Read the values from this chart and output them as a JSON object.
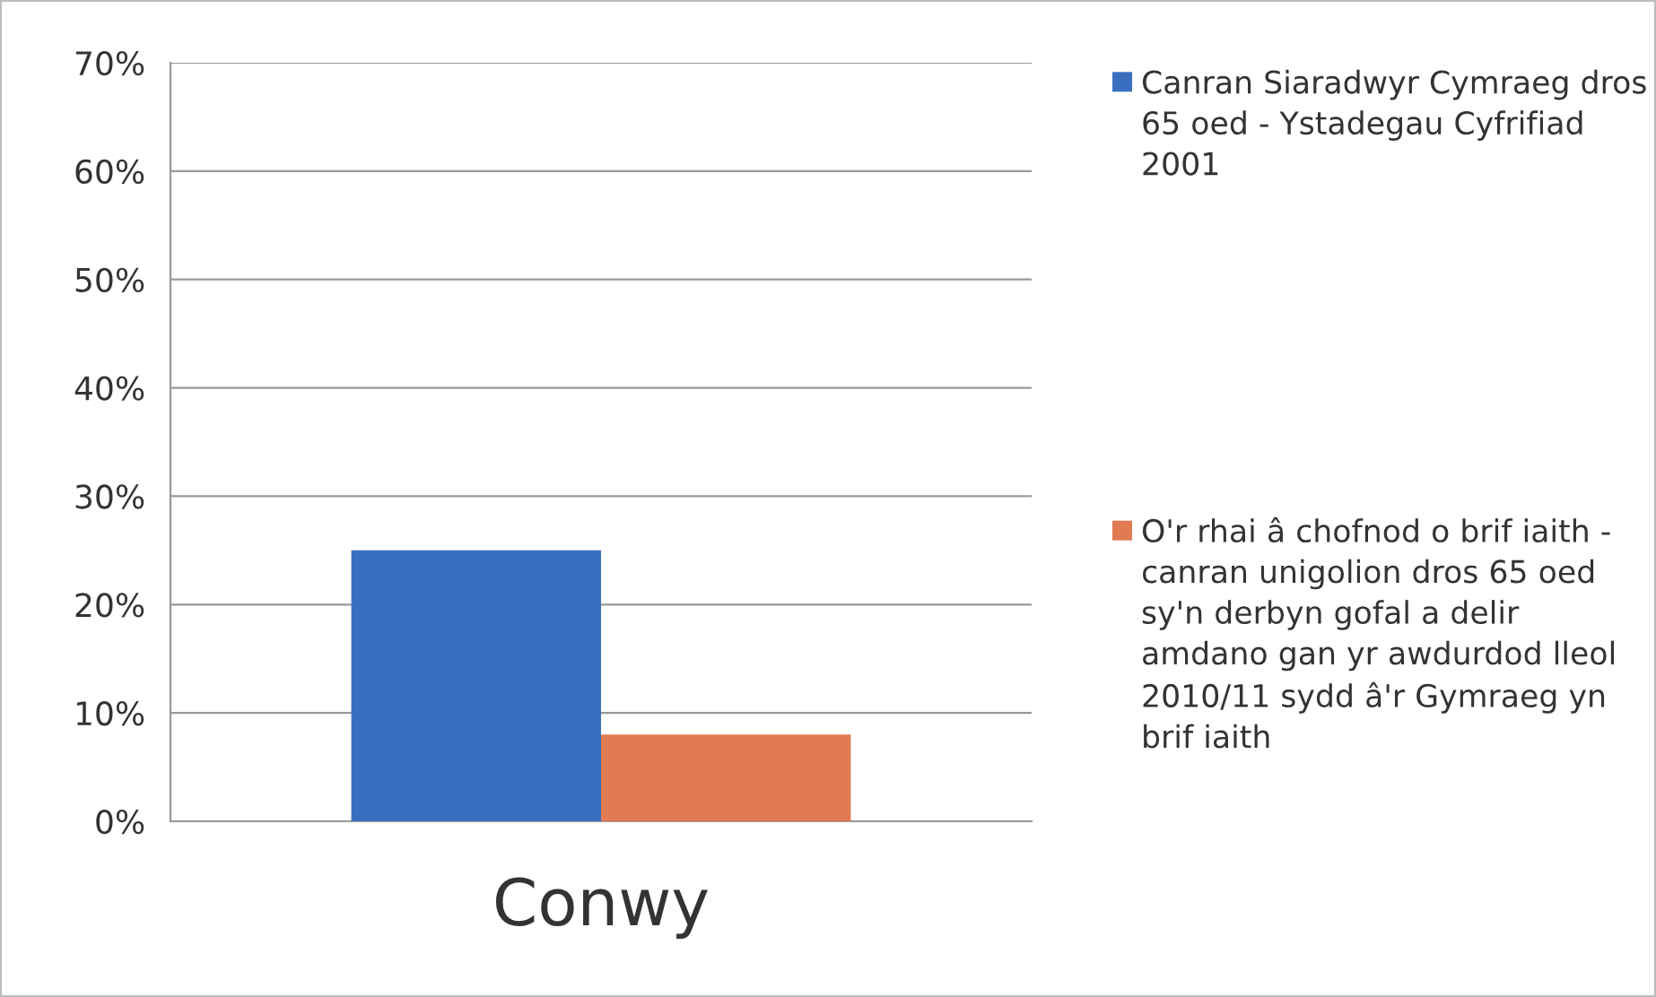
{
  "chart_data": {
    "type": "bar",
    "categories": [
      "Conwy"
    ],
    "series": [
      {
        "name": "Canran Siaradwyr Cymraeg dros 65 oed - Ystadegau Cyfrifiad 2001",
        "color": "#3a6fbf",
        "values": [
          25
        ]
      },
      {
        "name": "O'r rhai â chofnod o brif iaith - canran unigolion dros 65 oed sy'n derbyn gofal a delir amdano gan yr awdurdod lleol 2010/11 sydd â'r Gymraeg yn brif iaith",
        "color": "#e07b54",
        "values": [
          8
        ]
      }
    ],
    "ylim": [
      0,
      70
    ],
    "yticks": [
      {
        "value": 0,
        "label": "0%"
      },
      {
        "value": 10,
        "label": "10%"
      },
      {
        "value": 20,
        "label": "20%"
      },
      {
        "value": 30,
        "label": "30%"
      },
      {
        "value": 40,
        "label": "40%"
      },
      {
        "value": 50,
        "label": "50%"
      },
      {
        "value": 60,
        "label": "60%"
      },
      {
        "value": 70,
        "label": "70%"
      }
    ],
    "grid": "y",
    "legend": "right"
  }
}
